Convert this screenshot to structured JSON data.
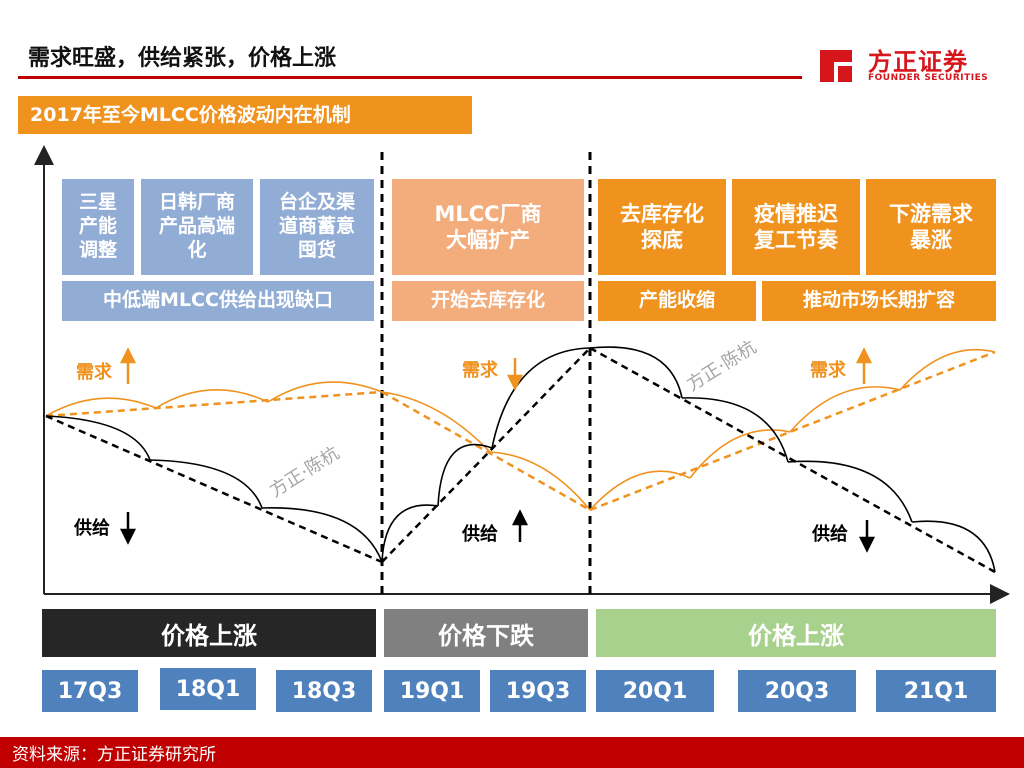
{
  "header": {
    "title": "需求旺盛，供给紧张，价格上涨",
    "logo_cn": "方正证券",
    "logo_en": "FOUNDER SECURITIES"
  },
  "subtitle": "2017年至今MLCC价格波动内在机制",
  "phase1": {
    "boxes": [
      "三星\n产能\n调整",
      "日韩厂商\n产品高端\n化",
      "台企及渠\n道商蓄意\n囤货"
    ],
    "band": "中低端MLCC供给出现缺口"
  },
  "phase2": {
    "box": "MLCC厂商\n大幅扩产",
    "band": "开始去库存化"
  },
  "phase3": {
    "boxes": [
      "去库存化\n探底",
      "疫情推迟\n复工节奏",
      "下游需求\n暴涨"
    ],
    "band1": "产能收缩",
    "band2": "推动市场长期扩容"
  },
  "chart_labels": {
    "demand_1": "需求",
    "demand_2": "需求",
    "demand_3": "需求",
    "supply_1": "供给",
    "supply_2": "供给",
    "supply_3": "供给",
    "watermark_1": "方正·陈杭",
    "watermark_2": "方正·陈杭"
  },
  "periods": {
    "p1": "价格上涨",
    "p2": "价格下跌",
    "p3": "价格上涨"
  },
  "quarters": [
    "17Q3",
    "18Q1",
    "18Q3",
    "19Q1",
    "19Q3",
    "20Q1",
    "20Q3",
    "21Q1"
  ],
  "colors": {
    "accent_red": "#c00000",
    "brand_red": "#d7161c",
    "orange": "#f0921e",
    "salmon": "#f3ad7d",
    "blue_box": "#92add5",
    "quarter_blue": "#4f81bd",
    "period_dark": "#262626",
    "period_gray": "#808080",
    "period_green": "#a9d18e"
  },
  "footer": {
    "source": "资料来源：方正证券研究所"
  }
}
